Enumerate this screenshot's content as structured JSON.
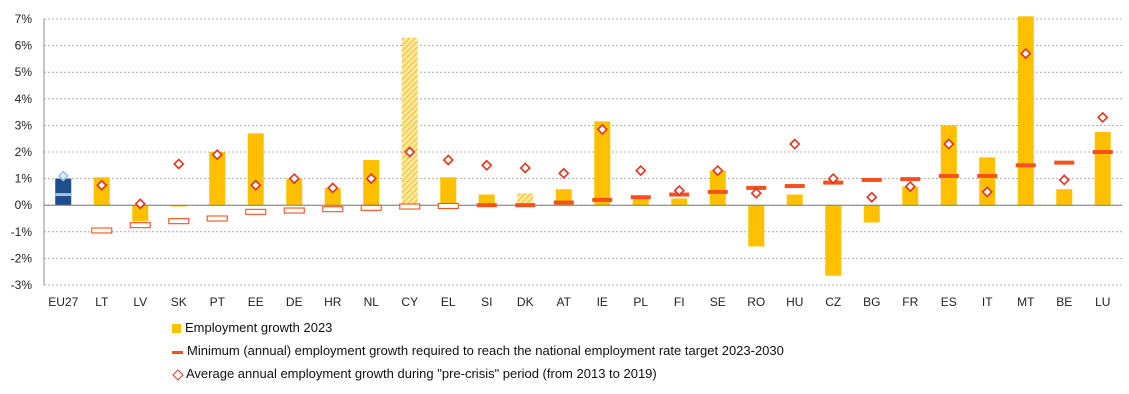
{
  "chart_data": {
    "type": "bar",
    "categories": [
      "EU27",
      "LT",
      "LV",
      "SK",
      "PT",
      "EE",
      "DE",
      "HR",
      "NL",
      "CY",
      "EL",
      "SI",
      "DK",
      "AT",
      "IE",
      "PL",
      "FI",
      "SE",
      "RO",
      "HU",
      "CZ",
      "BG",
      "FR",
      "ES",
      "IT",
      "MT",
      "BE",
      "LU"
    ],
    "ylim": [
      -3,
      7
    ],
    "yticks": [
      "-3%",
      "-2%",
      "-1%",
      "0%",
      "1%",
      "2%",
      "3%",
      "4%",
      "5%",
      "6%",
      "7%"
    ],
    "grid": "horizontal",
    "legend_position": "bottom",
    "series": [
      {
        "name": "Employment growth 2023",
        "style": "bar",
        "values": [
          1.0,
          1.05,
          -0.6,
          -0.05,
          2.0,
          2.7,
          1.0,
          0.65,
          1.7,
          6.3,
          1.05,
          0.4,
          0.45,
          0.6,
          3.15,
          0.35,
          0.25,
          1.3,
          -1.55,
          0.4,
          -2.65,
          -0.65,
          0.7,
          3.0,
          1.8,
          7.1,
          0.6,
          2.75
        ],
        "special": {
          "EU27": "highlighted",
          "CY": "hatched",
          "DK": "hatched"
        }
      },
      {
        "name": "Minimum (annual) employment growth required to reach the national employment rate target 2023-2030",
        "style": "dash",
        "values": [
          0.4,
          -0.95,
          -0.75,
          -0.6,
          -0.5,
          -0.25,
          -0.2,
          -0.15,
          -0.1,
          -0.05,
          -0.03,
          0.0,
          0.0,
          0.1,
          0.2,
          0.3,
          0.4,
          0.5,
          0.65,
          0.72,
          0.85,
          0.95,
          0.98,
          1.1,
          1.1,
          1.5,
          1.6,
          2.0
        ],
        "hollow_when_negative": true
      },
      {
        "name": "Average annual employment growth during \"pre-crisis\" period (from 2013 to 2019)",
        "style": "diamond",
        "values": [
          1.1,
          0.75,
          0.05,
          1.55,
          1.9,
          0.75,
          1.0,
          0.65,
          1.0,
          2.0,
          1.7,
          1.5,
          1.4,
          1.2,
          2.85,
          1.3,
          0.55,
          1.3,
          0.45,
          2.3,
          1.0,
          0.3,
          0.7,
          2.3,
          0.5,
          5.7,
          0.95,
          3.3
        ]
      }
    ]
  },
  "colors": {
    "bar": "#FFC000",
    "bar_eu": "#1F4E8C",
    "dash": "#F4511E",
    "diamond": "#E8301A",
    "eu_marker": "#9DC3E6",
    "grid": "#9a9a9a"
  },
  "legend": {
    "bar_label": "Employment growth 2023",
    "dash_label": "Minimum (annual) employment growth required to reach the national employment rate target 2023-2030",
    "diamond_label": "Average annual employment growth during \"pre-crisis\" period (from 2013 to 2019)"
  }
}
